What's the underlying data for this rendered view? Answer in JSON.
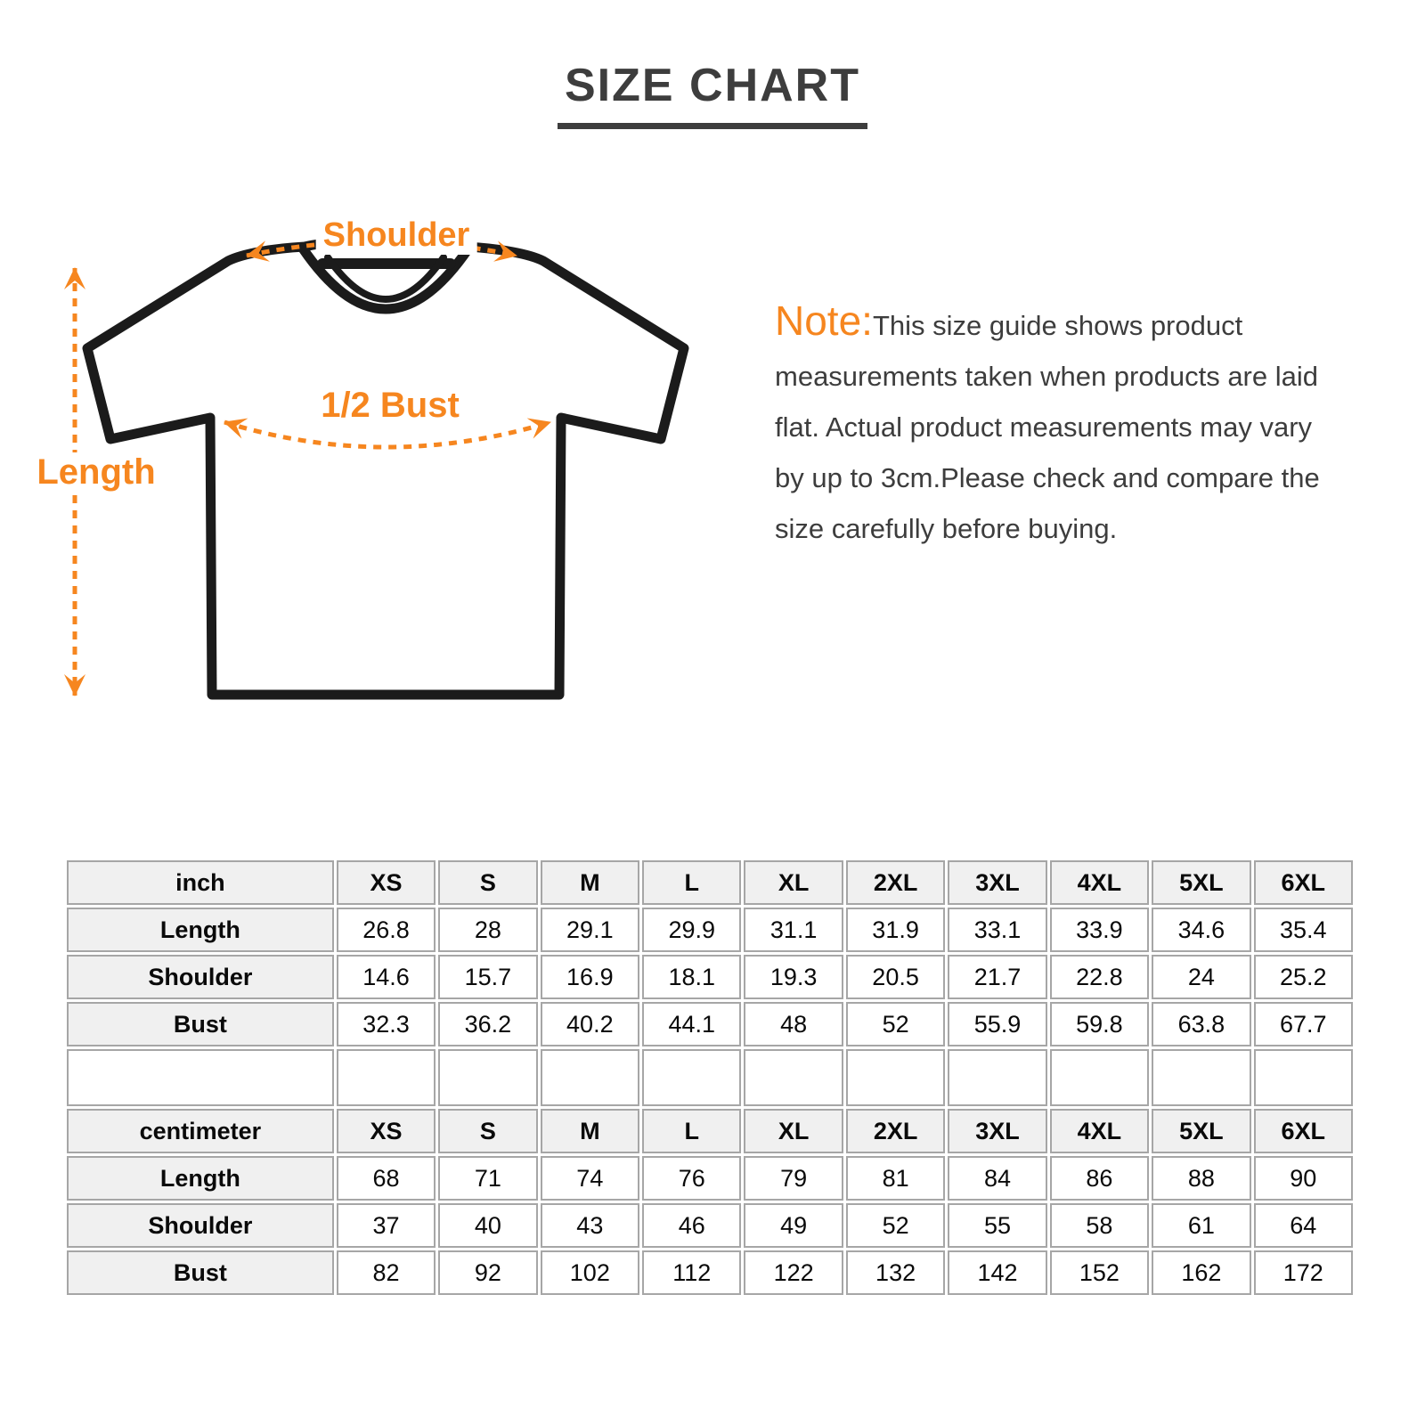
{
  "page": {
    "title": "SIZE CHART"
  },
  "diagram": {
    "shoulder_label": "Shoulder",
    "bust_label": "1/2 Bust",
    "length_label": "Length"
  },
  "note": {
    "label": "Note:",
    "text": "This size guide shows product measurements taken when products are laid flat. Actual product measurements may vary by up to 3cm.Please check and compare the size carefully before buying."
  },
  "size_table": {
    "sizes": [
      "XS",
      "S",
      "M",
      "L",
      "XL",
      "2XL",
      "3XL",
      "4XL",
      "5XL",
      "6XL"
    ],
    "sections": [
      {
        "unit_label": "inch",
        "rows": [
          {
            "label": "Length",
            "values": [
              "26.8",
              "28",
              "29.1",
              "29.9",
              "31.1",
              "31.9",
              "33.1",
              "33.9",
              "34.6",
              "35.4"
            ]
          },
          {
            "label": "Shoulder",
            "values": [
              "14.6",
              "15.7",
              "16.9",
              "18.1",
              "19.3",
              "20.5",
              "21.7",
              "22.8",
              "24",
              "25.2"
            ]
          },
          {
            "label": "Bust",
            "values": [
              "32.3",
              "36.2",
              "40.2",
              "44.1",
              "48",
              "52",
              "55.9",
              "59.8",
              "63.8",
              "67.7"
            ]
          }
        ]
      },
      {
        "unit_label": "centimeter",
        "rows": [
          {
            "label": "Length",
            "values": [
              "68",
              "71",
              "74",
              "76",
              "79",
              "81",
              "84",
              "86",
              "88",
              "90"
            ]
          },
          {
            "label": "Shoulder",
            "values": [
              "37",
              "40",
              "43",
              "46",
              "49",
              "52",
              "55",
              "58",
              "61",
              "64"
            ]
          },
          {
            "label": "Bust",
            "values": [
              "82",
              "92",
              "102",
              "112",
              "122",
              "132",
              "142",
              "152",
              "162",
              "172"
            ]
          }
        ]
      }
    ]
  },
  "colors": {
    "accent": "#f6861f",
    "text-dark": "#3d3d3d",
    "outline": "#1b1b1b",
    "table-border": "#a6a6a6",
    "table-header-bg": "#f0f0f0"
  }
}
